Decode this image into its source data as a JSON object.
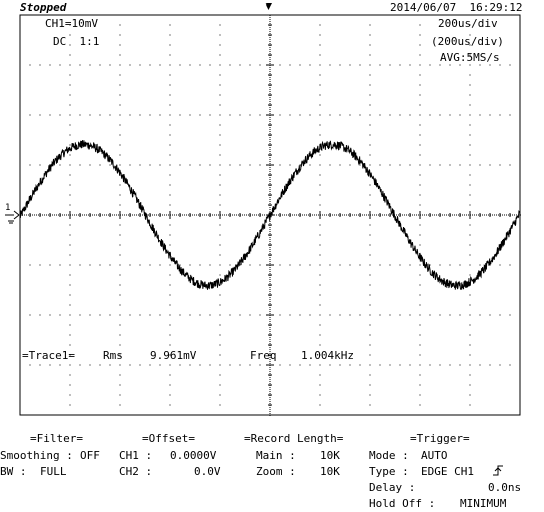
{
  "header": {
    "status": "Stopped",
    "datetime": "2014/06/07  16:29:12"
  },
  "channel": {
    "scale": "CH1=10mV",
    "coupling": "DC  1:1"
  },
  "timebase": {
    "div": "200us/div",
    "div_alt": "(200us/div)",
    "acq": "AVG:5MS/s"
  },
  "measure": {
    "label": "=Trace1=",
    "rms_label": "Rms",
    "rms_value": "9.961mV",
    "freq_label": "Freq",
    "freq_value": "1.004kHz"
  },
  "footer": {
    "filter": {
      "title": "=Filter=",
      "smoothing_label": "Smoothing :",
      "smoothing_value": "OFF",
      "bw_label": "BW :",
      "bw_value": "FULL"
    },
    "offset": {
      "title": "=Offset=",
      "ch1_label": "CH1 :",
      "ch1_value": "0.0000V",
      "ch2_label": "CH2 :",
      "ch2_value": "0.0V"
    },
    "record": {
      "title": "=Record Length=",
      "main_label": "Main :",
      "main_value": "10K",
      "zoom_label": "Zoom :",
      "zoom_value": "10K"
    },
    "trigger": {
      "title": "=Trigger=",
      "mode_label": "Mode :",
      "mode_value": "AUTO",
      "type_label": "Type :",
      "type_value": "EDGE CH1",
      "delay_label": "Delay :",
      "delay_value": "0.0ns",
      "holdoff_label": "Hold Off :",
      "holdoff_value": "MINIMUM"
    }
  },
  "markers": {
    "left_ref": "1",
    "top_trig": "T"
  },
  "chart_data": {
    "type": "line",
    "xlim": [
      -1000,
      1000
    ],
    "ylim": [
      -40,
      40
    ],
    "x_unit": "us",
    "y_unit": "mV",
    "x_per_div": 200,
    "y_per_div": 10,
    "divisions": {
      "x": 10,
      "y": 8
    },
    "grid": true,
    "series": [
      {
        "waveform": "sine",
        "frequency_hz": 1004,
        "amplitude_mv": 14.1,
        "rms_mv": 9.961,
        "noise_mv": 0.9,
        "color": "#000000"
      }
    ]
  }
}
